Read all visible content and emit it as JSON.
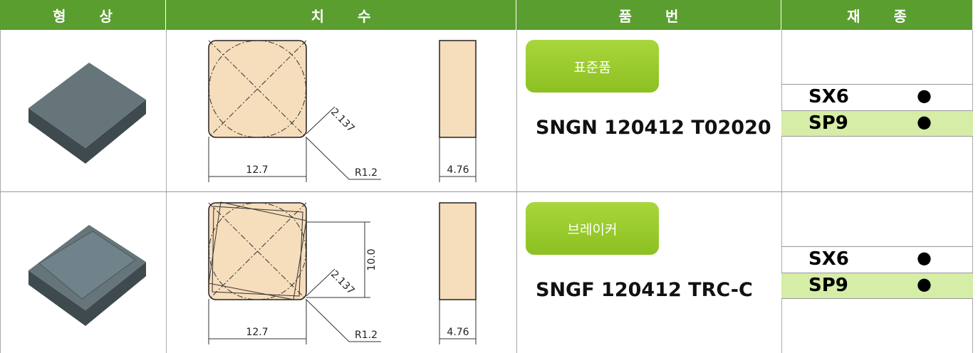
{
  "header": [
    "형 상",
    "치 수",
    "품 번",
    "재 종"
  ],
  "rows": [
    {
      "dimensions": {
        "width": "12.7",
        "corner_radius": "R1.2",
        "diagonal": "2.137",
        "thickness": "4.76"
      },
      "badge": "표준품",
      "part_number": "SNGN 120412 T02020",
      "grades": [
        {
          "name": "SX6",
          "mark": "●"
        },
        {
          "name": "SP9",
          "mark": "●"
        }
      ]
    },
    {
      "dimensions": {
        "width": "12.7",
        "corner_radius": "R1.2",
        "diagonal": "2.137",
        "thickness": "4.76",
        "height": "10.0"
      },
      "badge": "브레이커",
      "part_number": "SNGF 120412 TRC-C",
      "grades": [
        {
          "name": "SX6",
          "mark": "●"
        },
        {
          "name": "SP9",
          "mark": "●"
        }
      ]
    }
  ]
}
